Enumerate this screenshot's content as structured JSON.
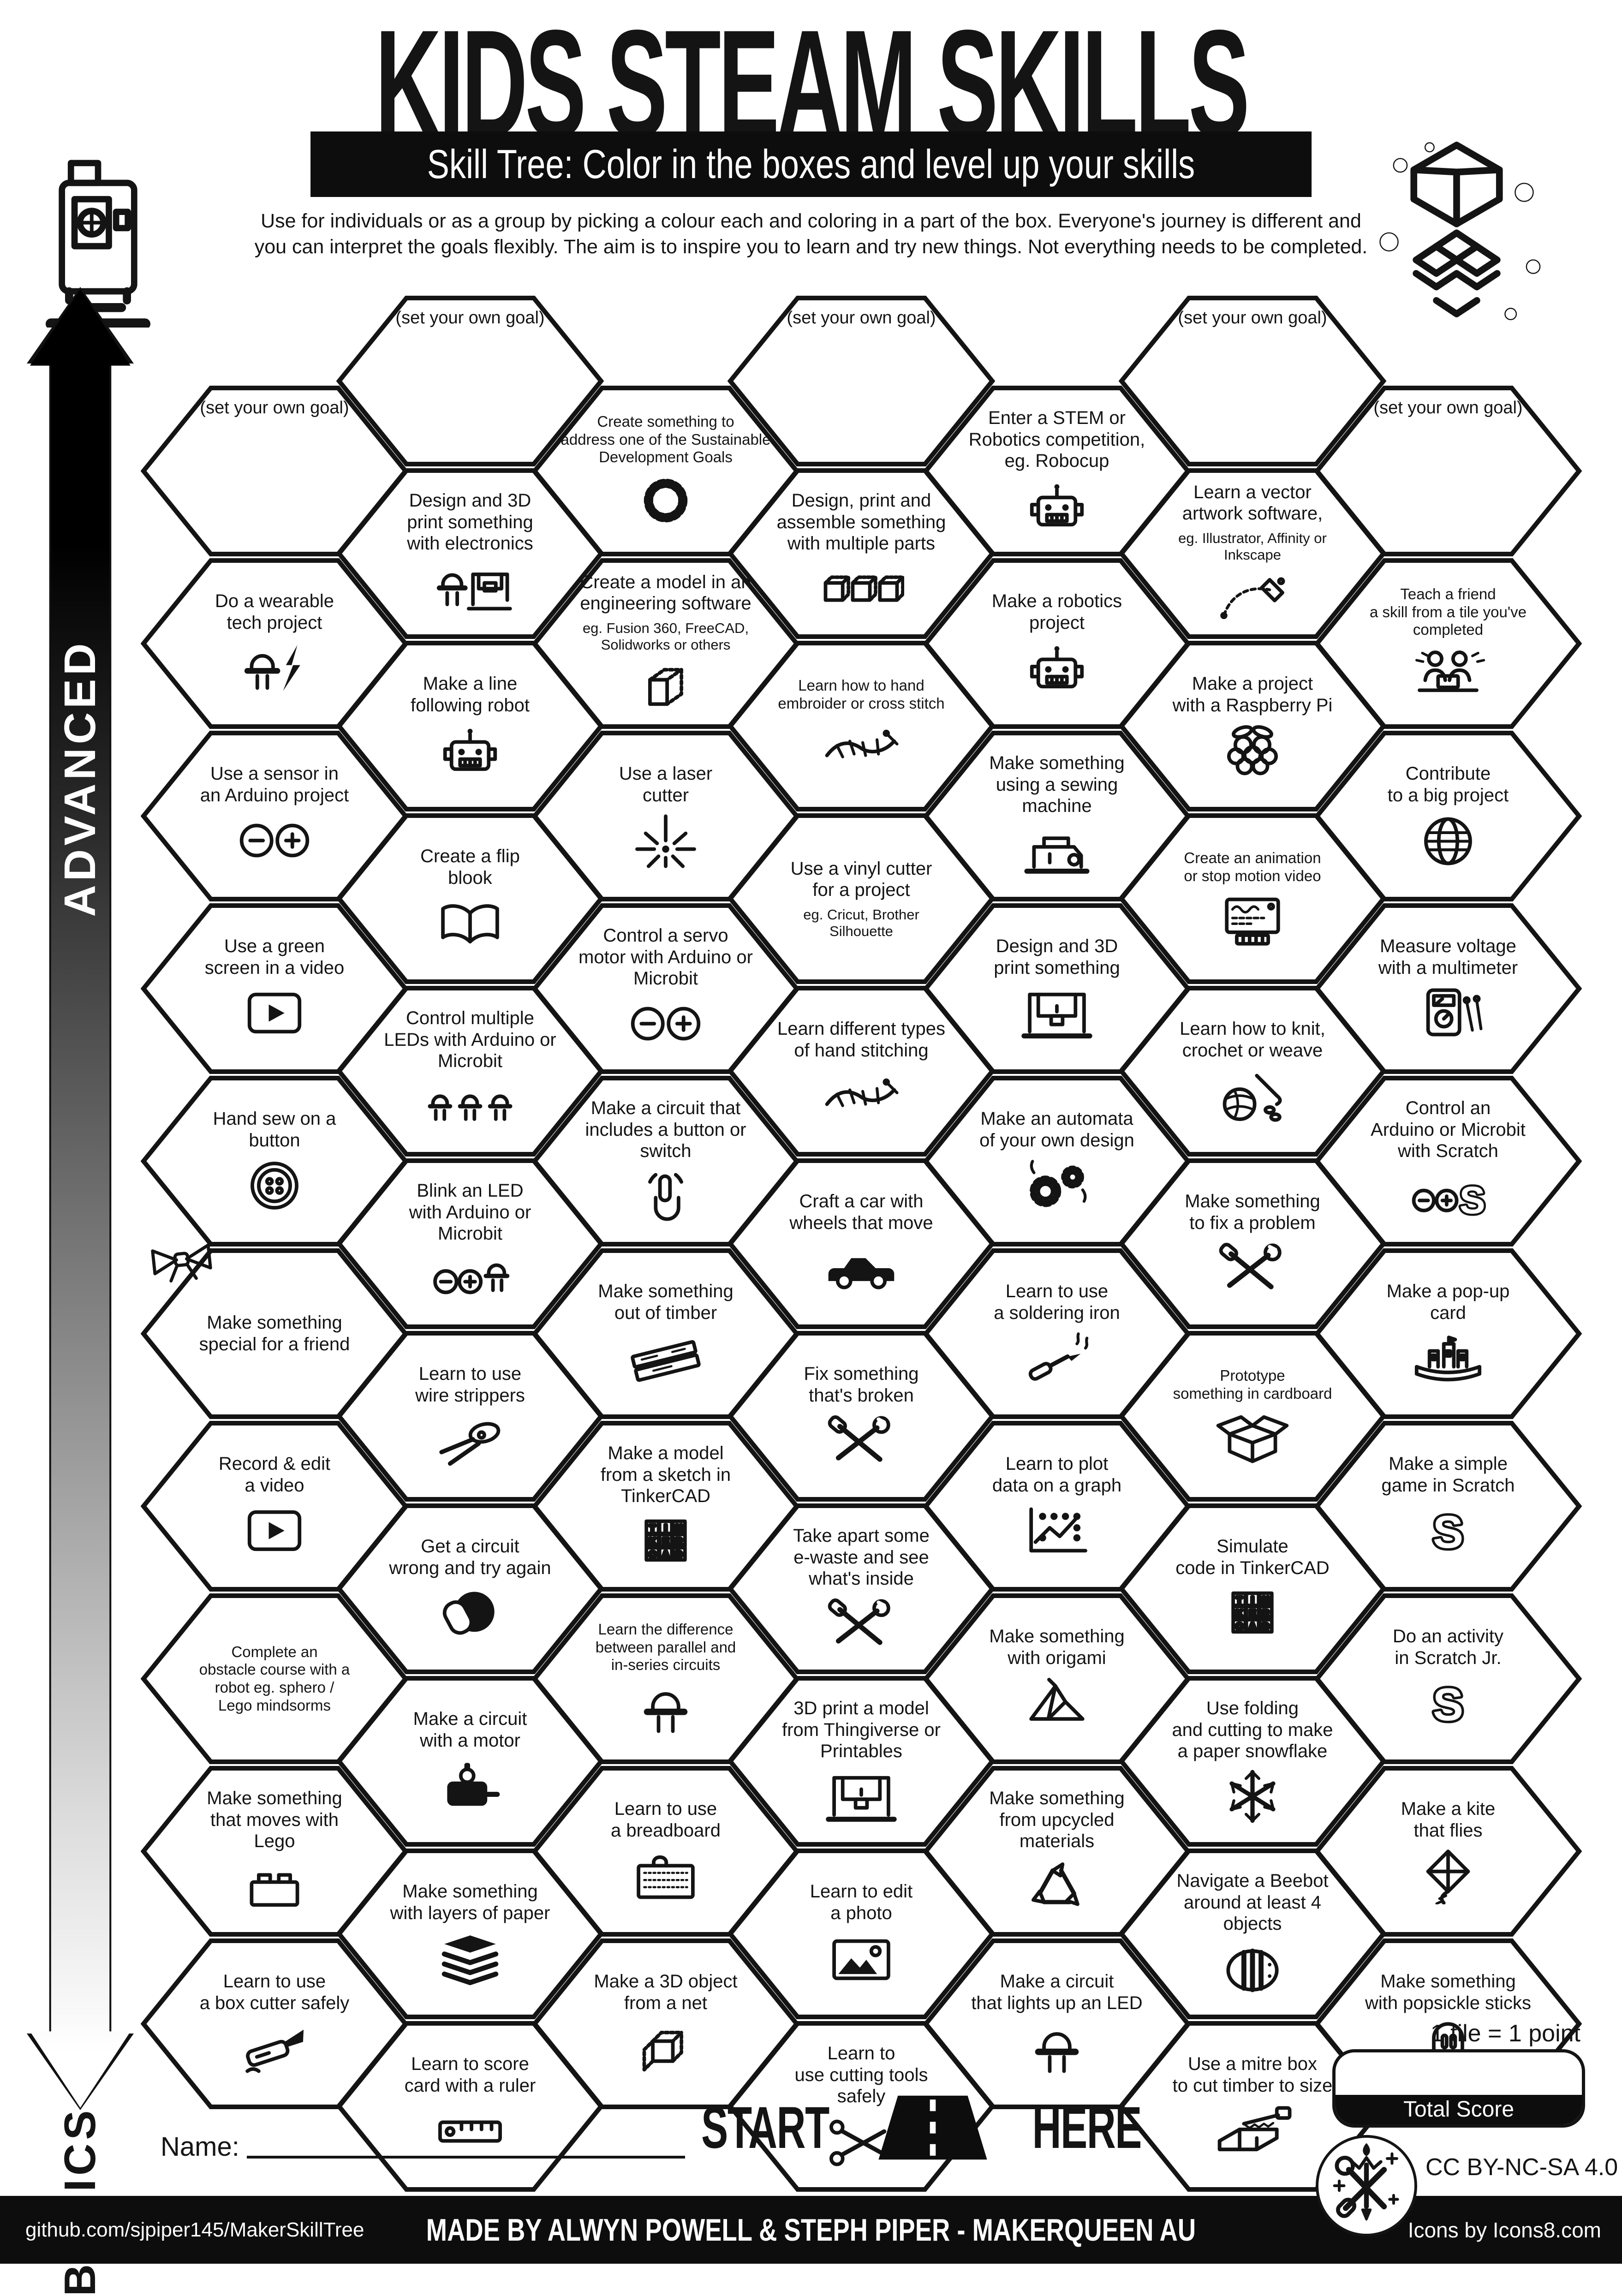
{
  "header": {
    "title": "KIDS STEAM SKILLS",
    "banner": "Skill Tree:  Color in the boxes and level up your skills",
    "description": "Use for individuals or as a group by picking a colour each and coloring in a part of the box.  Everyone's journey is different and you can interpret the goals flexibly.  The aim is to inspire you to learn and try new things. Not everything needs to be completed."
  },
  "axis": {
    "top": "ADVANCED",
    "bottom": "BASICS"
  },
  "grid": {
    "goal_label": "(set your own goal)",
    "columns": [
      {
        "tiles": [
          {
            "goal": true
          },
          {
            "label": "Do a wearable\ntech project",
            "icon": "wearable"
          },
          {
            "label": "Use a sensor in\nan Arduino project",
            "icon": "arduino"
          },
          {
            "label": "Use a green\nscreen in a video",
            "icon": "video"
          },
          {
            "label": "Hand sew on a\nbutton",
            "icon": "button"
          },
          {
            "label": "Make something\nspecial for a friend",
            "icon": "bow",
            "pos": "corner"
          },
          {
            "label": "Record & edit\na video",
            "icon": "video"
          },
          {
            "label": "Complete an\nobstacle course with a\nrobot eg. sphero /\nLego mindsorms",
            "size": "s"
          },
          {
            "label": "Make something\nthat moves with\nLego",
            "icon": "lego"
          },
          {
            "label": "Learn to use\na box cutter safely",
            "icon": "boxcutter"
          }
        ]
      },
      {
        "tiles": [
          {
            "goal": true
          },
          {
            "label": "Design and 3D\nprint something\nwith electronics",
            "icon": "led-printer"
          },
          {
            "label": "Make a line\nfollowing robot",
            "icon": "robot"
          },
          {
            "label": "Create a flip\nblook",
            "icon": "book"
          },
          {
            "label": "Control multiple\nLEDs with Arduino or\nMicrobit",
            "icon": "leds3"
          },
          {
            "label": "Blink an LED\nwith Arduino or\nMicrobit",
            "icon": "arduino-led"
          },
          {
            "label": "Learn to use\nwire strippers",
            "icon": "strippers"
          },
          {
            "label": "Get a circuit\nwrong and try again",
            "icon": "facepalm"
          },
          {
            "label": "Make a circuit\nwith a motor",
            "icon": "motor"
          },
          {
            "label": "Make something\nwith layers of paper",
            "icon": "layers"
          },
          {
            "label": "Learn to score\ncard with a ruler",
            "icon": "ruler"
          }
        ]
      },
      {
        "tiles": [
          {
            "label": "Create something to\naddress one of the Sustainable\nDevelopment Goals",
            "icon": "sdg",
            "size": "s"
          },
          {
            "label": "Create a model in an\nengineering software",
            "sub": "eg. Fusion 360, FreeCAD,\nSolidworks or others",
            "icon": "cube3d"
          },
          {
            "label": "Use a laser\ncutter",
            "icon": "laser"
          },
          {
            "label": "Control a servo\nmotor with Arduino or\nMicrobit",
            "icon": "arduino"
          },
          {
            "label": "Make a circuit that\nincludes a button or\nswitch",
            "icon": "press"
          },
          {
            "label": "Make something\nout of timber",
            "icon": "timber"
          },
          {
            "label": "Make a model\nfrom a sketch in\nTinkerCAD",
            "icon": "tinkercad"
          },
          {
            "label": "Learn the difference\nbetween parallel and\nin-series circuits",
            "icon": "led",
            "size": "s"
          },
          {
            "label": "Learn to use\na breadboard",
            "icon": "breadboard"
          },
          {
            "label": "Make a 3D object\nfrom a net",
            "icon": "net"
          }
        ]
      },
      {
        "tiles": [
          {
            "goal": true
          },
          {
            "label": "Design, print and\nassemble something\nwith multiple parts",
            "icon": "cubes3"
          },
          {
            "label": "Learn how to hand\nembroider or cross stitch",
            "icon": "stitch",
            "size": "s"
          },
          {
            "label": "Use a vinyl cutter\nfor a project",
            "sub": "eg. Cricut, Brother\nSilhouette"
          },
          {
            "label": "Learn different types\nof hand stitching",
            "icon": "stitch"
          },
          {
            "label": "Craft a car with\nwheels that move",
            "icon": "car"
          },
          {
            "label": "Fix something\nthat's broken",
            "icon": "tools"
          },
          {
            "label": "Take apart some\ne-waste and see\nwhat's inside",
            "icon": "tools"
          },
          {
            "label": "3D print a model\nfrom Thingiverse or\nPrintables",
            "icon": "printer3d"
          },
          {
            "label": "Learn to edit\na photo",
            "icon": "photo"
          },
          {
            "label": "Learn to\nuse cutting tools\nsafely",
            "icon": "scissors"
          }
        ]
      },
      {
        "tiles": [
          {
            "label": "Enter a STEM or\nRobotics competition,\neg. Robocup",
            "icon": "robot"
          },
          {
            "label": "Make a robotics\nproject",
            "icon": "robot"
          },
          {
            "label": "Make something\nusing a sewing\nmachine",
            "icon": "sewing"
          },
          {
            "label": "Design and 3D\nprint something",
            "icon": "printer3d"
          },
          {
            "label": "Make an automata\nof your own design",
            "icon": "gears"
          },
          {
            "label": "Learn to use\na soldering iron",
            "icon": "soldering"
          },
          {
            "label": "Learn to plot\ndata on a graph",
            "icon": "graph"
          },
          {
            "label": "Make something\nwith origami",
            "icon": "origami"
          },
          {
            "label": "Make something\nfrom upcycled\nmaterials",
            "icon": "recycle"
          },
          {
            "label": "Make a circuit\nthat lights up an LED",
            "icon": "led"
          }
        ]
      },
      {
        "tiles": [
          {
            "goal": true
          },
          {
            "label": "Learn a vector\nartwork software,",
            "sub": "eg. Illustrator, Affinity or\nInkscape",
            "icon": "pen"
          },
          {
            "label": "Make a project\nwith a Raspberry Pi",
            "icon": "raspberry"
          },
          {
            "label": "Create an animation\nor stop motion video",
            "icon": "animation",
            "size": "s"
          },
          {
            "label": "Learn how to knit,\ncrochet or weave",
            "icon": "yarn"
          },
          {
            "label": "Make something\nto fix a problem",
            "icon": "tools"
          },
          {
            "label": "Prototype\nsomething in cardboard",
            "icon": "openbox",
            "size": "s"
          },
          {
            "label": "Simulate\ncode in TinkerCAD",
            "icon": "tinkercad"
          },
          {
            "label": "Use folding\nand cutting to make\na paper snowflake",
            "icon": "snowflake"
          },
          {
            "label": "Navigate a Beebot\naround at least 4\nobjects",
            "icon": "beebot"
          },
          {
            "label": "Use a mitre box\nto cut timber to size",
            "icon": "mitre"
          }
        ]
      },
      {
        "tiles": [
          {
            "goal": true
          },
          {
            "label": "Teach a friend\na skill from a tile you've\ncompleted",
            "icon": "people",
            "size": "s"
          },
          {
            "label": "Contribute\nto a big project",
            "icon": "globe"
          },
          {
            "label": "Measure voltage\nwith a multimeter",
            "icon": "multimeter"
          },
          {
            "label": "Control an\nArduino or Microbit\nwith Scratch",
            "icon": "arduino-scratch"
          },
          {
            "label": "Make a pop-up\ncard",
            "icon": "popup"
          },
          {
            "label": "Make a simple\ngame in Scratch",
            "icon": "scratch"
          },
          {
            "label": "Do an activity\nin Scratch Jr.",
            "icon": "scratch"
          },
          {
            "label": "Make a kite\nthat flies",
            "icon": "kite"
          },
          {
            "label": "Make something\nwith popsickle sticks",
            "icon": "popsicle"
          }
        ]
      }
    ]
  },
  "start": {
    "left": "START",
    "right": "HERE"
  },
  "name_label": "Name:",
  "score": {
    "note": "1 tile = 1 point",
    "label": "Total Score"
  },
  "license": "CC BY-NC-SA 4.0",
  "footer": {
    "left": "github.com/sjpiper145/MakerSkillTree",
    "center": "MADE BY ALWYN POWELL & STEPH PIPER  -  MAKERQUEEN AU",
    "right": "Icons by Icons8.com"
  }
}
